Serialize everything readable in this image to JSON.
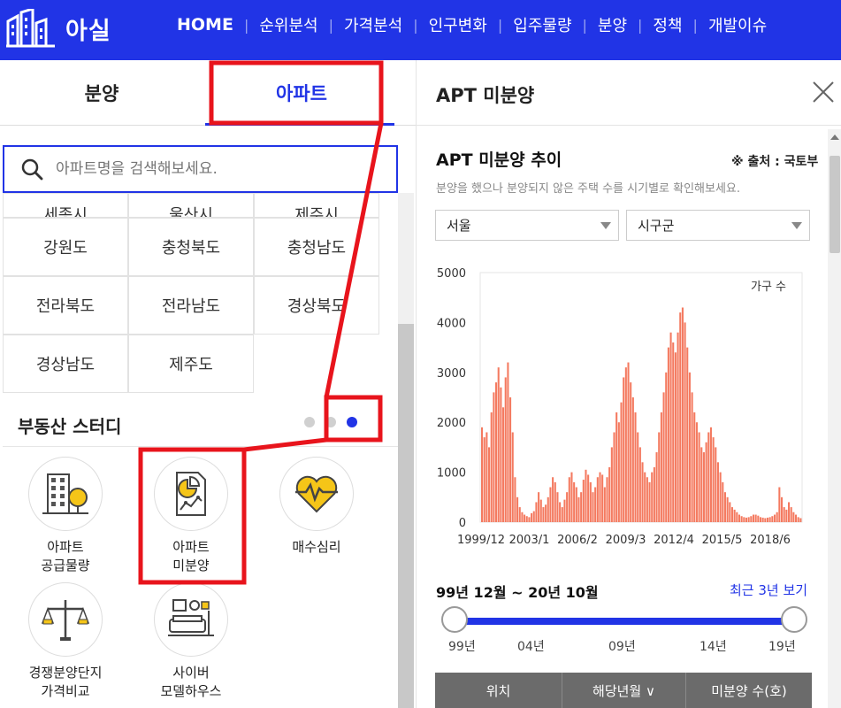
{
  "header": {
    "logo_text": "아실",
    "nav": [
      "HOME",
      "순위분석",
      "가격분석",
      "인구변화",
      "입주물량",
      "분양",
      "정책",
      "개발이슈"
    ]
  },
  "left": {
    "tabs": {
      "bunyang": "분양",
      "apt": "아파트"
    },
    "search": {
      "placeholder": "아파트명을 검색해보세요."
    },
    "regions_partial": [
      "세종시",
      "울산시",
      "제주시"
    ],
    "regions": [
      "강원도",
      "충청북도",
      "충청남도",
      "전라북도",
      "전라남도",
      "경상북도",
      "경상남도",
      "제주도"
    ],
    "study_title": "부동산 스터디",
    "study_items": [
      {
        "label": "아파트\n공급물량",
        "icon": "apartment-tree-icon"
      },
      {
        "label": "아파트\n미분양",
        "icon": "document-chart-icon"
      },
      {
        "label": "매수심리",
        "icon": "heart-pulse-icon"
      },
      {
        "label": "경쟁분양단지\n가격비교",
        "icon": "scale-balance-icon"
      },
      {
        "label": "사이버\n모델하우스",
        "icon": "living-room-icon"
      }
    ]
  },
  "right": {
    "panel_title": "APT 미분양",
    "section_title": "APT 미분양 추이",
    "source": "※ 출처 : 국토부",
    "desc": "분양을 했으나 분양되지 않은 주택 수를 시기별로 확인해보세요.",
    "select_city": "서울",
    "select_district": "시구군",
    "range_text": "99년 12월 ~ 20년 10월",
    "recent_link": "최근 3년 보기",
    "slider_labels": [
      "99년",
      "04년",
      "09년",
      "14년",
      "19년"
    ],
    "table_headers": [
      "위치",
      "해당년월 ∨",
      "미분양 수(호)"
    ]
  },
  "chart_data": {
    "type": "bar",
    "legend": "가구 수",
    "ylim": [
      0,
      5000
    ],
    "yticks": [
      0,
      1000,
      2000,
      3000,
      4000,
      5000
    ],
    "xticks": [
      "1999/12",
      "2003/1",
      "2006/2",
      "2009/3",
      "2012/4",
      "2015/5",
      "2018/6"
    ],
    "color": "#f47a60",
    "values": [
      1900,
      1700,
      1800,
      1500,
      2200,
      2600,
      2800,
      3100,
      2700,
      2300,
      2900,
      3200,
      2500,
      1800,
      900,
      500,
      300,
      200,
      150,
      120,
      100,
      180,
      220,
      400,
      600,
      450,
      300,
      350,
      500,
      700,
      900,
      800,
      600,
      400,
      300,
      450,
      600,
      900,
      1000,
      800,
      700,
      500,
      600,
      850,
      1050,
      950,
      800,
      600,
      700,
      900,
      1000,
      950,
      700,
      900,
      1100,
      1500,
      1800,
      2200,
      2000,
      2400,
      2900,
      3100,
      3200,
      2800,
      2500,
      2200,
      1800,
      1500,
      1200,
      1000,
      900,
      800,
      1000,
      1100,
      1400,
      1800,
      2200,
      2600,
      3000,
      3500,
      3800,
      3600,
      3400,
      3800,
      4200,
      4300,
      4000,
      3500,
      3000,
      2600,
      2200,
      2000,
      1800,
      1500,
      1400,
      1600,
      1800,
      1900,
      1700,
      1500,
      1200,
      1000,
      800,
      600,
      500,
      400,
      300,
      250,
      200,
      150,
      120,
      100,
      90,
      100,
      120,
      150,
      150,
      130,
      100,
      90,
      80,
      90,
      100,
      120,
      150,
      200,
      700,
      500,
      300,
      250,
      400,
      300,
      200,
      150,
      100,
      80
    ]
  }
}
